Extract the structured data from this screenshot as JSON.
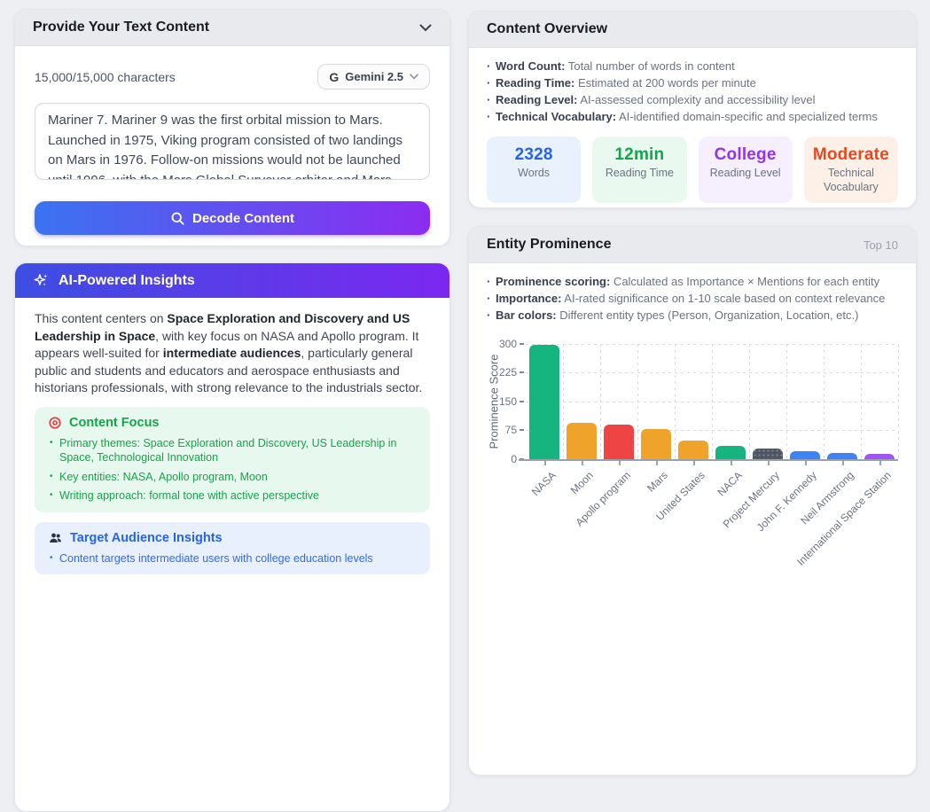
{
  "left": {
    "text_content": {
      "title": "Provide Your Text Content",
      "char_count": "15,000/15,000 characters",
      "model_button": {
        "g": "G",
        "label": "Gemini 2.5"
      },
      "textarea_value": "Mariner 7. Mariner 9 was the first orbital mission to Mars. Launched in 1975, Viking program consisted of two landings on Mars in 1976. Follow-on missions would not be launched until 1996, with the Mars Global Surveyor orbiter and Mars Pathfinder, deploying the first",
      "decode_label": "Decode Content"
    },
    "insights": {
      "title": "AI-Powered Insights",
      "summary_segments": [
        {
          "text": "This content centers on "
        },
        {
          "text": "Space Exploration and Discovery and US Leadership in Space",
          "bold": true
        },
        {
          "text": ", with key focus on NASA and Apollo program. It appears well-suited for "
        },
        {
          "text": "intermediate audiences",
          "bold": true
        },
        {
          "text": ", particularly general public and students and educators and aerospace enthusiasts and historians professionals, with strong relevance to the industrials sector."
        }
      ],
      "focus": {
        "title": "Content Focus",
        "items": [
          "Primary themes: Space Exploration and Discovery, US Leadership in Space, Technological Innovation",
          "Key entities: NASA, Apollo program, Moon",
          "Writing approach: formal tone with active perspective"
        ]
      },
      "audience": {
        "title": "Target Audience Insights",
        "items": [
          "Content targets intermediate users with college education levels"
        ]
      }
    }
  },
  "right": {
    "overview": {
      "title": "Content Overview",
      "bullets": [
        {
          "label": "Word Count:",
          "text": " Total number of words in content"
        },
        {
          "label": "Reading Time:",
          "text": " Estimated at 200 words per minute"
        },
        {
          "label": "Reading Level:",
          "text": " AI-assessed complexity and accessibility level"
        },
        {
          "label": "Technical Vocabulary:",
          "text": " AI-identified domain-specific and specialized terms"
        }
      ],
      "cards": [
        {
          "value": "2328",
          "label": "Words",
          "color": "#2563eb",
          "bg": "#e9f1fd"
        },
        {
          "value": "12min",
          "label": "Reading Time",
          "color": "#16a34a",
          "bg": "#e9f9f0"
        },
        {
          "value": "College",
          "label": "Reading Level",
          "color": "#9333ea",
          "bg": "#f6effd"
        },
        {
          "value": "Moderate",
          "label": "Technical Vocabulary",
          "color": "#e8471f",
          "bg": "#fdf1e7"
        }
      ]
    },
    "entity": {
      "title": "Entity Prominence",
      "badge": "Top 10",
      "bullets": [
        {
          "label": "Prominence scoring:",
          "text": " Calculated as Importance × Mentions for each entity"
        },
        {
          "label": "Importance:",
          "text": " AI-rated significance on 1-10 scale based on context relevance"
        },
        {
          "label": "Bar colors:",
          "text": " Different entity types (Person, Organization, Location, etc.)"
        }
      ]
    }
  },
  "icons": {
    "panel_collapse": "chevron-down",
    "model_dropdown": "chevron-down",
    "decode": "search",
    "insights_header": "sparkles",
    "content_focus": "target",
    "target_audience": "users"
  },
  "accent_colors": {
    "decode_gradient": [
      "#3a73f0",
      "#8c2cf0"
    ],
    "insights_gradient": [
      "#3d4ee2",
      "#7b28f0"
    ]
  },
  "chart_data": {
    "type": "bar",
    "title": "Entity Prominence (Top 10)",
    "ylabel": "Prominence Score",
    "xlabel": "",
    "ylim": [
      0,
      300
    ],
    "yticks": [
      0,
      75,
      150,
      225,
      300
    ],
    "grid": "dotted",
    "legend": "none",
    "categories": [
      "NASA",
      "Moon",
      "Apollo program",
      "Mars",
      "United States",
      "NACA",
      "Project Mercury",
      "John F. Kennedy",
      "Neil Armstrong",
      "International Space Station"
    ],
    "values": [
      298,
      95,
      89,
      79,
      48,
      34,
      27,
      20,
      15,
      13
    ],
    "colors": [
      "#16b47e",
      "#f0a32b",
      "#ee4444",
      "#f0a32b",
      "#f0a32b",
      "#16b47e",
      "#4e5563",
      "#3d82f6",
      "#3d82f6",
      "#a156f2"
    ],
    "textures": [
      null,
      null,
      null,
      null,
      null,
      null,
      "dots",
      null,
      null,
      null
    ]
  }
}
